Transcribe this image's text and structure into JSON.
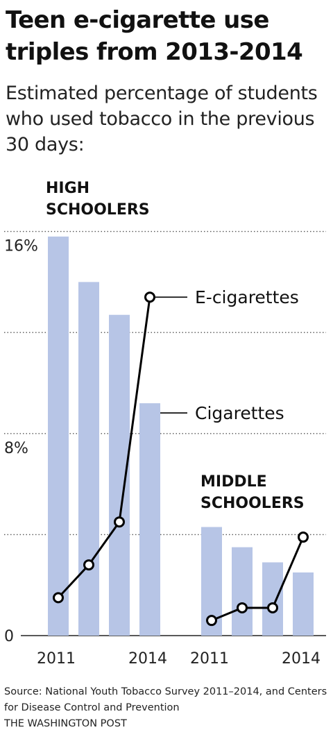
{
  "header": {
    "title": "Teen e-cigarette use triples from 2013-2014",
    "subtitle": "Estimated percentage of students who used tobacco in the previous 30 days:"
  },
  "footer": {
    "source": "Source: National Youth Tobacco Survey 2011–2014, and Centers for Disease Control and Prevention",
    "credit": "THE WASHINGTON POST"
  },
  "colors": {
    "bar": "#b7c5e6",
    "line": "#000000",
    "grid": "#555555"
  },
  "chart_data": {
    "type": "bar",
    "title": "Teen e-cigarette use triples from 2013-2014",
    "subtitle": "Estimated percentage of students who used tobacco in the previous 30 days:",
    "ylim": [
      0,
      16
    ],
    "y_ticks": [
      {
        "value": 0,
        "label": "0"
      },
      {
        "value": 8,
        "label": "8%"
      },
      {
        "value": 16,
        "label": "16%"
      }
    ],
    "gridlines": [
      4,
      8,
      12,
      16
    ],
    "grid": true,
    "panels": [
      {
        "name": "HIGH SCHOOLERS",
        "x": [
          2011,
          2012,
          2013,
          2014
        ],
        "x_tick_labels": [
          "2011",
          "",
          "",
          "2014"
        ],
        "series": [
          {
            "name": "Cigarettes",
            "type": "bar",
            "values": [
              15.8,
              14.0,
              12.7,
              9.2
            ]
          },
          {
            "name": "E-cigarettes",
            "type": "line",
            "values": [
              1.5,
              2.8,
              4.5,
              13.4
            ]
          }
        ]
      },
      {
        "name": "MIDDLE SCHOOLERS",
        "x": [
          2011,
          2012,
          2013,
          2014
        ],
        "x_tick_labels": [
          "2011",
          "",
          "",
          "2014"
        ],
        "series": [
          {
            "name": "Cigarettes",
            "type": "bar",
            "values": [
              4.3,
              3.5,
              2.9,
              2.5
            ]
          },
          {
            "name": "E-cigarettes",
            "type": "line",
            "values": [
              0.6,
              1.1,
              1.1,
              3.9
            ]
          }
        ]
      }
    ]
  }
}
